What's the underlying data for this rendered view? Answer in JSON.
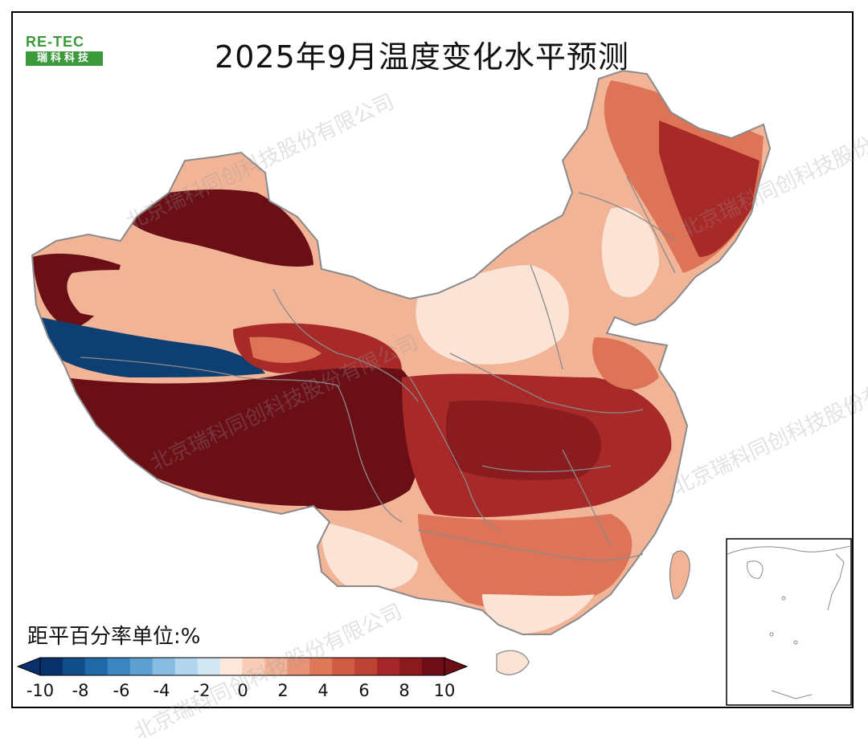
{
  "title": "2025年9月温度变化水平预测",
  "logo": {
    "top": "RE-TEC",
    "bottom": "瑞科科技"
  },
  "legend": {
    "title": "距平百分率单位:%",
    "ticks": [
      "-10",
      "-8",
      "-6",
      "-4",
      "-2",
      "0",
      "2",
      "4",
      "6",
      "8",
      "10"
    ],
    "colors": [
      "#08306b",
      "#124e8a",
      "#1f69a8",
      "#3c86c0",
      "#5d9fd0",
      "#86bde0",
      "#b0d5ec",
      "#d3e6f3",
      "#fde6dc",
      "#f8cdb8",
      "#f2b297",
      "#ea9475",
      "#df7759",
      "#d05c44",
      "#bd4435",
      "#a6272a",
      "#8b1a1f",
      "#6e0d15"
    ]
  },
  "watermark": "北京瑞科同创科技股份有限公司",
  "colors": {
    "very_high": "#6b0f17",
    "high": "#a82a28",
    "mid": "#dd7457",
    "low": "#f2b497",
    "near_zero": "#fbe3d6",
    "negative": "#0e3f72",
    "border": "#8a8a8a"
  }
}
